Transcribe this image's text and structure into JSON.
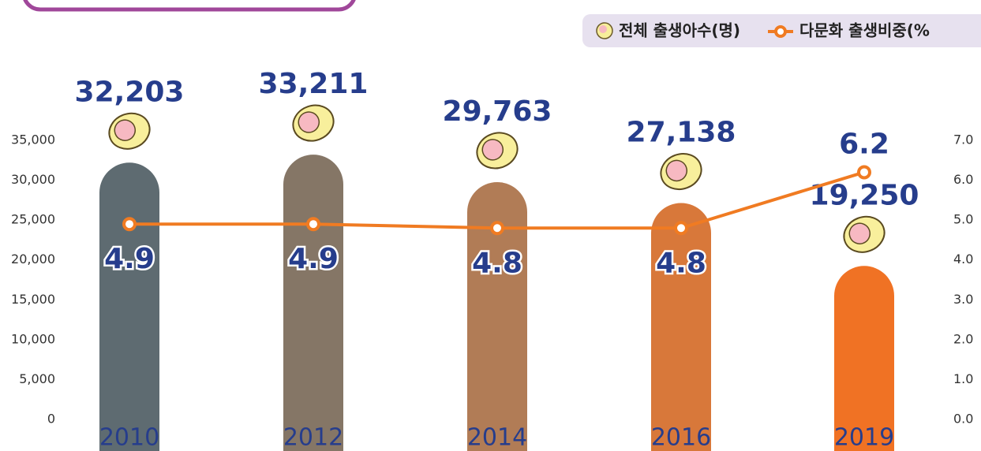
{
  "chart_data": {
    "type": "bar_line",
    "categories": [
      "2010",
      "2012",
      "2014",
      "2016",
      "2019"
    ],
    "series": [
      {
        "name": "전체 출생아수(명)",
        "type": "bar",
        "colors": [
          "#5e6b71",
          "#857666",
          "#b17c56",
          "#d8783a",
          "#f07224"
        ],
        "values": [
          32203,
          33211,
          29763,
          27138,
          19250
        ],
        "value_labels": [
          "32,203",
          "33,211",
          "29,763",
          "27,138",
          "19,250"
        ]
      },
      {
        "name": "다문화 출생비중(%",
        "type": "line",
        "axis": "y2",
        "color": "#f07b22",
        "values": [
          4.9,
          4.9,
          4.8,
          4.8,
          6.2
        ]
      }
    ],
    "ylim": [
      0,
      35000
    ],
    "yticks": [
      0,
      {
        "value": 5000,
        "label": "5,000"
      },
      {
        "value": 10000,
        "label": "10,000"
      },
      {
        "value": 15000,
        "label": "15,000"
      },
      {
        "value": 20000,
        "label": "20,000"
      },
      {
        "value": 25000,
        "label": "25,000"
      },
      {
        "value": 30000,
        "label": "30,000"
      },
      {
        "value": 35000,
        "label": "35,000"
      }
    ],
    "y2lim": [
      0,
      7
    ],
    "y2ticks": [
      {
        "value": 0,
        "label": "0.0"
      },
      {
        "value": 1,
        "label": "1.0"
      },
      {
        "value": 2,
        "label": "2.0"
      },
      {
        "value": 3,
        "label": "3.0"
      },
      {
        "value": 4,
        "label": "4.0"
      },
      {
        "value": 5,
        "label": "5.0"
      },
      {
        "value": 6,
        "label": "6.0"
      },
      {
        "value": 7,
        "label": "7.0"
      }
    ],
    "legend": "top-right"
  }
}
